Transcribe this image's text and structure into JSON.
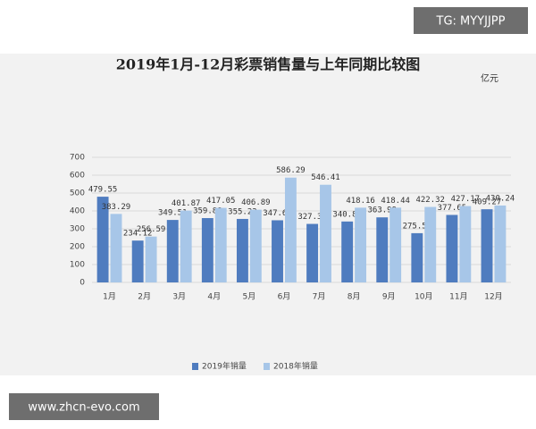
{
  "watermarks": {
    "top": "TG: MYYJJPP",
    "bottom": "www.zhcn-evo.com"
  },
  "chart_data": {
    "type": "bar",
    "title": "2019年1月-12月彩票销售量与上年同期比较图",
    "unit": "亿元",
    "categories": [
      "1月",
      "2月",
      "3月",
      "4月",
      "5月",
      "6月",
      "7月",
      "8月",
      "9月",
      "10月",
      "11月",
      "12月"
    ],
    "series": [
      {
        "name": "2019年销量",
        "color": "#4f7cbf",
        "values": [
          479.55,
          234.12,
          349.51,
          359.88,
          355.23,
          347.67,
          327.34,
          340.81,
          363.99,
          275.51,
          377.65,
          409.27
        ]
      },
      {
        "name": "2018年销量",
        "color": "#a7c6e8",
        "values": [
          383.29,
          256.59,
          401.87,
          417.05,
          406.89,
          586.29,
          546.41,
          418.16,
          418.44,
          422.32,
          427.17,
          430.24
        ]
      }
    ],
    "ylim": [
      0,
      700
    ],
    "yticks": [
      0,
      100,
      200,
      300,
      400,
      500,
      600,
      700
    ],
    "grid": true,
    "legend": "bottom"
  }
}
